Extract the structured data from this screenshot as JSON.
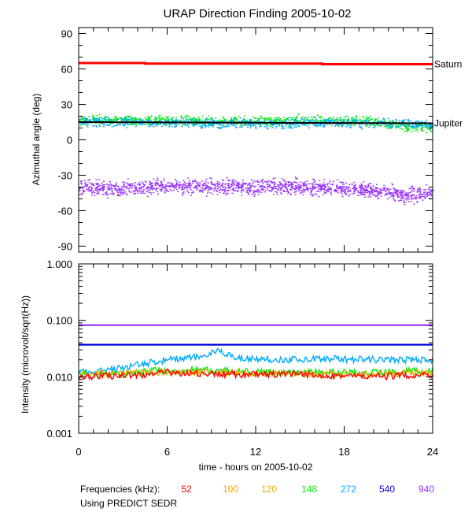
{
  "chart_data": {
    "type": "scatter",
    "title": "URAP Direction Finding  2005-10-02",
    "xlabel": "time - hours on 2005-10-02",
    "xlim": [
      0,
      24
    ],
    "x_ticks": [
      "0",
      "6",
      "12",
      "18",
      "24"
    ],
    "legend_prefix": "Frequencies (kHz):",
    "footnote": "Using PREDICT SEDR",
    "frequencies": [
      {
        "label": "52",
        "color": "#ff0000"
      },
      {
        "label": "100",
        "color": "#ffa500"
      },
      {
        "label": "120",
        "color": "#e0b000"
      },
      {
        "label": "148",
        "color": "#00ee00"
      },
      {
        "label": "272",
        "color": "#00aaff"
      },
      {
        "label": "540",
        "color": "#0000dd"
      },
      {
        "label": "940",
        "color": "#9933ff"
      }
    ],
    "panels": [
      {
        "name": "azimuth",
        "ylabel": "Azimuthal angle (deg)",
        "ylim": [
          -95,
          95
        ],
        "y_tick_values": [
          90,
          60,
          30,
          0,
          -30,
          -60,
          -90
        ],
        "y_ticks": [
          "90",
          "60",
          "30",
          "0",
          "-30",
          "-60",
          "-90"
        ],
        "reference_lines": [
          {
            "label": "Saturn",
            "color": "#ff0000",
            "x": [
              0,
              4.5,
              4.5,
              16.5,
              16.5,
              24
            ],
            "y": [
              65,
              65,
              64.5,
              64.5,
              64,
              64
            ]
          },
          {
            "label": "Jupiter",
            "color": "#000000",
            "x": [
              0,
              12,
              24
            ],
            "y": [
              15,
              14.5,
              14
            ]
          }
        ],
        "series": [
          {
            "name": "940",
            "x": [
              0,
              2,
              4,
              6,
              8,
              10,
              12,
              14,
              16,
              18,
              20,
              21,
              22,
              23,
              24
            ],
            "y": [
              -40,
              -41,
              -40,
              -39,
              -40,
              -39,
              -40,
              -39,
              -40,
              -41,
              -43,
              -44,
              -47,
              -45,
              -44
            ]
          },
          {
            "name": "148",
            "x": [
              0,
              4,
              8,
              12,
              16,
              20,
              22,
              24
            ],
            "y": [
              17,
              17,
              16,
              16,
              17,
              16,
              11,
              12
            ]
          },
          {
            "name": "272",
            "x": [
              0,
              4,
              8,
              12,
              16,
              20,
              24
            ],
            "y": [
              16,
              15,
              15,
              14,
              15,
              15,
              13
            ]
          }
        ]
      },
      {
        "name": "intensity",
        "ylabel": "Intensity (microvolt/sqrt(Hz))",
        "ylim": [
          0.001,
          1.0
        ],
        "log_scale": true,
        "y_tick_values": [
          1.0,
          0.1,
          0.01,
          0.001
        ],
        "y_ticks": [
          "1.000",
          "0.100",
          "0.010",
          "0.001"
        ],
        "series": [
          {
            "name": "940",
            "x": [
              0,
              4,
              8,
              12,
              16,
              20,
              24
            ],
            "y": [
              0.082,
              0.082,
              0.082,
              0.082,
              0.082,
              0.082,
              0.082
            ]
          },
          {
            "name": "540",
            "x": [
              0,
              4,
              8,
              12,
              16,
              20,
              24
            ],
            "y": [
              0.037,
              0.037,
              0.037,
              0.037,
              0.037,
              0.037,
              0.037
            ]
          },
          {
            "name": "272",
            "x": [
              0,
              2,
              4,
              6,
              8,
              9.5,
              11,
              14,
              17,
              20,
              24
            ],
            "y": [
              0.012,
              0.013,
              0.016,
              0.02,
              0.022,
              0.028,
              0.021,
              0.02,
              0.021,
              0.02,
              0.02
            ]
          },
          {
            "name": "148",
            "x": [
              0,
              3,
              5,
              7,
              9,
              12,
              16,
              20,
              24
            ],
            "y": [
              0.011,
              0.011,
              0.013,
              0.013,
              0.013,
              0.012,
              0.012,
              0.012,
              0.013
            ]
          },
          {
            "name": "120",
            "x": [
              0,
              5,
              10,
              15,
              20,
              24
            ],
            "y": [
              0.011,
              0.012,
              0.012,
              0.011,
              0.011,
              0.012
            ]
          },
          {
            "name": "52",
            "x": [
              0,
              5,
              6,
              10,
              15,
              20,
              24
            ],
            "y": [
              0.01,
              0.011,
              0.012,
              0.011,
              0.011,
              0.01,
              0.011
            ]
          }
        ]
      }
    ]
  }
}
